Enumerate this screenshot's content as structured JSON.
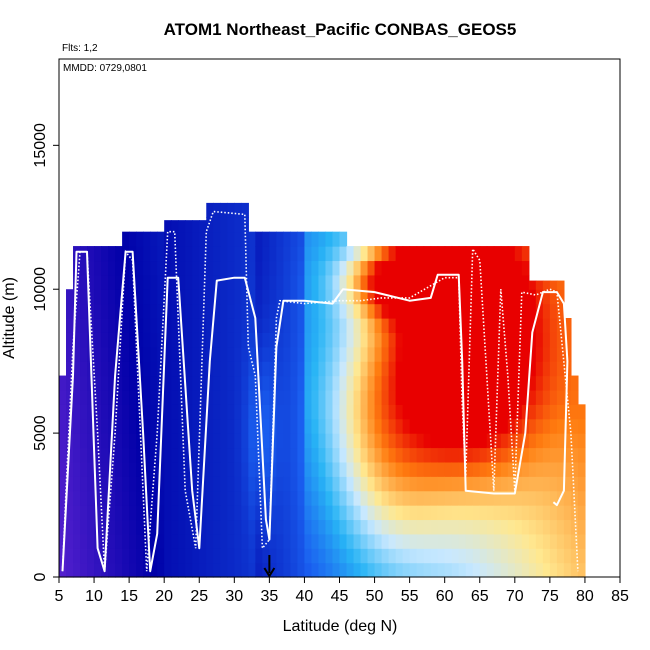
{
  "chart_data": {
    "type": "heatmap",
    "title": "ATOM1 Northeast_Pacific CONBAS_GEOS5",
    "flights_note": "Flts: 1,2",
    "dates_note": "MMDD: 0729,0801",
    "xlabel": "Latitude (deg N)",
    "ylabel": "Altitude (m)",
    "xlim": [
      5,
      85
    ],
    "ylim": [
      0,
      18000
    ],
    "x_ticks": [
      "5",
      "10",
      "15",
      "20",
      "25",
      "30",
      "35",
      "40",
      "45",
      "50",
      "55",
      "60",
      "65",
      "70",
      "75",
      "80",
      "85"
    ],
    "y_ticks": [
      "0",
      "5000",
      "10000",
      "15000"
    ],
    "arrow_marker_latitude": 35,
    "colors": {
      "purple": "#7a2ee0",
      "navy": "#0000a8",
      "blue": "#1a5ff0",
      "sky": "#28b4f5",
      "pale": "#c8e8ff",
      "yellow": "#ffe890",
      "orange": "#ff7d10",
      "red": "#e80000",
      "track": "#ffffff"
    },
    "flight_track_solid": [
      [
        5.5,
        200
      ],
      [
        7,
        7000
      ],
      [
        7.5,
        11300
      ],
      [
        9,
        11300
      ],
      [
        10.5,
        1000
      ],
      [
        11.5,
        200
      ],
      [
        13,
        7000
      ],
      [
        14.5,
        11300
      ],
      [
        15.5,
        11300
      ],
      [
        17,
        5000
      ],
      [
        18,
        200
      ],
      [
        19,
        1500
      ],
      [
        20.5,
        10400
      ],
      [
        22,
        10400
      ],
      [
        24,
        3000
      ],
      [
        25,
        1000
      ],
      [
        26.5,
        7500
      ],
      [
        27.5,
        10300
      ],
      [
        30,
        10400
      ],
      [
        31.5,
        10400
      ],
      [
        33,
        9000
      ],
      [
        34.5,
        2000
      ],
      [
        35,
        1300
      ],
      [
        36,
        8000
      ],
      [
        37,
        9600
      ],
      [
        40,
        9600
      ],
      [
        44,
        9500
      ],
      [
        45.5,
        10000
      ],
      [
        50,
        9900
      ],
      [
        55,
        9600
      ],
      [
        58,
        9700
      ],
      [
        59,
        10500
      ],
      [
        62,
        10500
      ],
      [
        62.5,
        7500
      ],
      [
        63,
        3000
      ],
      [
        67,
        2900
      ],
      [
        70,
        2900
      ],
      [
        71.5,
        5000
      ],
      [
        72.5,
        8500
      ],
      [
        74,
        9900
      ],
      [
        76,
        9900
      ],
      [
        77,
        9500
      ],
      [
        77.5,
        7500
      ],
      [
        77,
        3000
      ],
      [
        76,
        2500
      ],
      [
        75.5,
        2600
      ]
    ],
    "flight_track_dotted": [
      [
        5.5,
        200
      ],
      [
        6,
        3000
      ],
      [
        7,
        8000
      ],
      [
        8,
        11300
      ],
      [
        9,
        11300
      ],
      [
        10.5,
        5000
      ],
      [
        11.5,
        200
      ],
      [
        13,
        5000
      ],
      [
        14.5,
        11300
      ],
      [
        15.5,
        11000
      ],
      [
        17.5,
        200
      ],
      [
        19,
        5000
      ],
      [
        20.5,
        12000
      ],
      [
        21.5,
        12000
      ],
      [
        23,
        3000
      ],
      [
        24.5,
        1000
      ],
      [
        26,
        12000
      ],
      [
        27,
        12700
      ],
      [
        31.5,
        12600
      ],
      [
        32,
        8000
      ],
      [
        33,
        7000
      ],
      [
        34,
        1000
      ],
      [
        35,
        1300
      ],
      [
        36,
        9000
      ],
      [
        36.5,
        9600
      ],
      [
        40,
        9500
      ],
      [
        45,
        9600
      ],
      [
        48,
        9600
      ],
      [
        51,
        9700
      ],
      [
        55,
        9700
      ],
      [
        60,
        10400
      ],
      [
        62,
        10400
      ],
      [
        62.5,
        6000
      ],
      [
        63,
        3500
      ],
      [
        64,
        11400
      ],
      [
        65,
        11000
      ],
      [
        66,
        7000
      ],
      [
        67,
        3000
      ],
      [
        68,
        10000
      ],
      [
        69,
        7000
      ],
      [
        70,
        3000
      ],
      [
        71,
        9900
      ],
      [
        73,
        9800
      ],
      [
        75,
        10000
      ],
      [
        76,
        9900
      ],
      [
        78,
        5000
      ],
      [
        79,
        200
      ]
    ]
  }
}
